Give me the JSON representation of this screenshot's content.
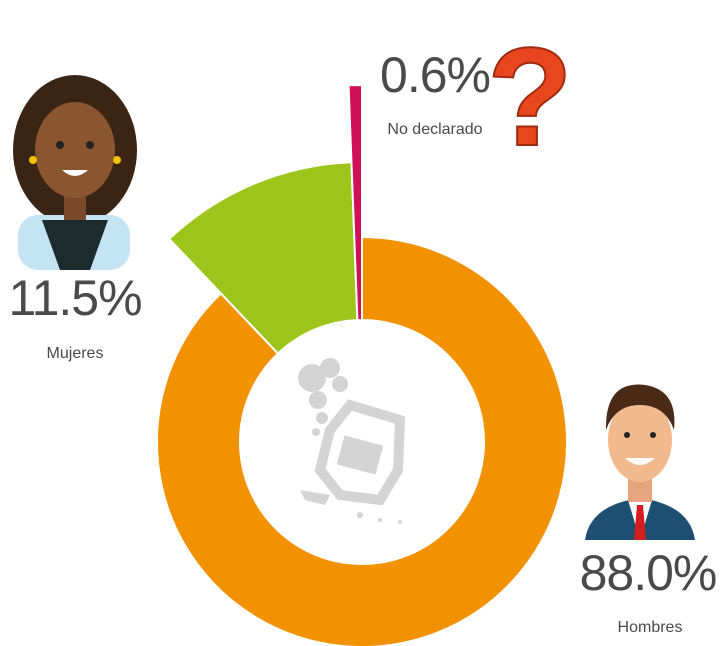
{
  "chart_data": {
    "type": "donut",
    "categories": [
      "Hombres",
      "Mujeres",
      "No declarado"
    ],
    "values": [
      88.0,
      11.5,
      0.6
    ],
    "value_labels": [
      "88.0%",
      "11.5%",
      "0.6%"
    ],
    "colors": [
      "#f39200",
      "#9dc41a",
      "#d1105a"
    ]
  }
}
